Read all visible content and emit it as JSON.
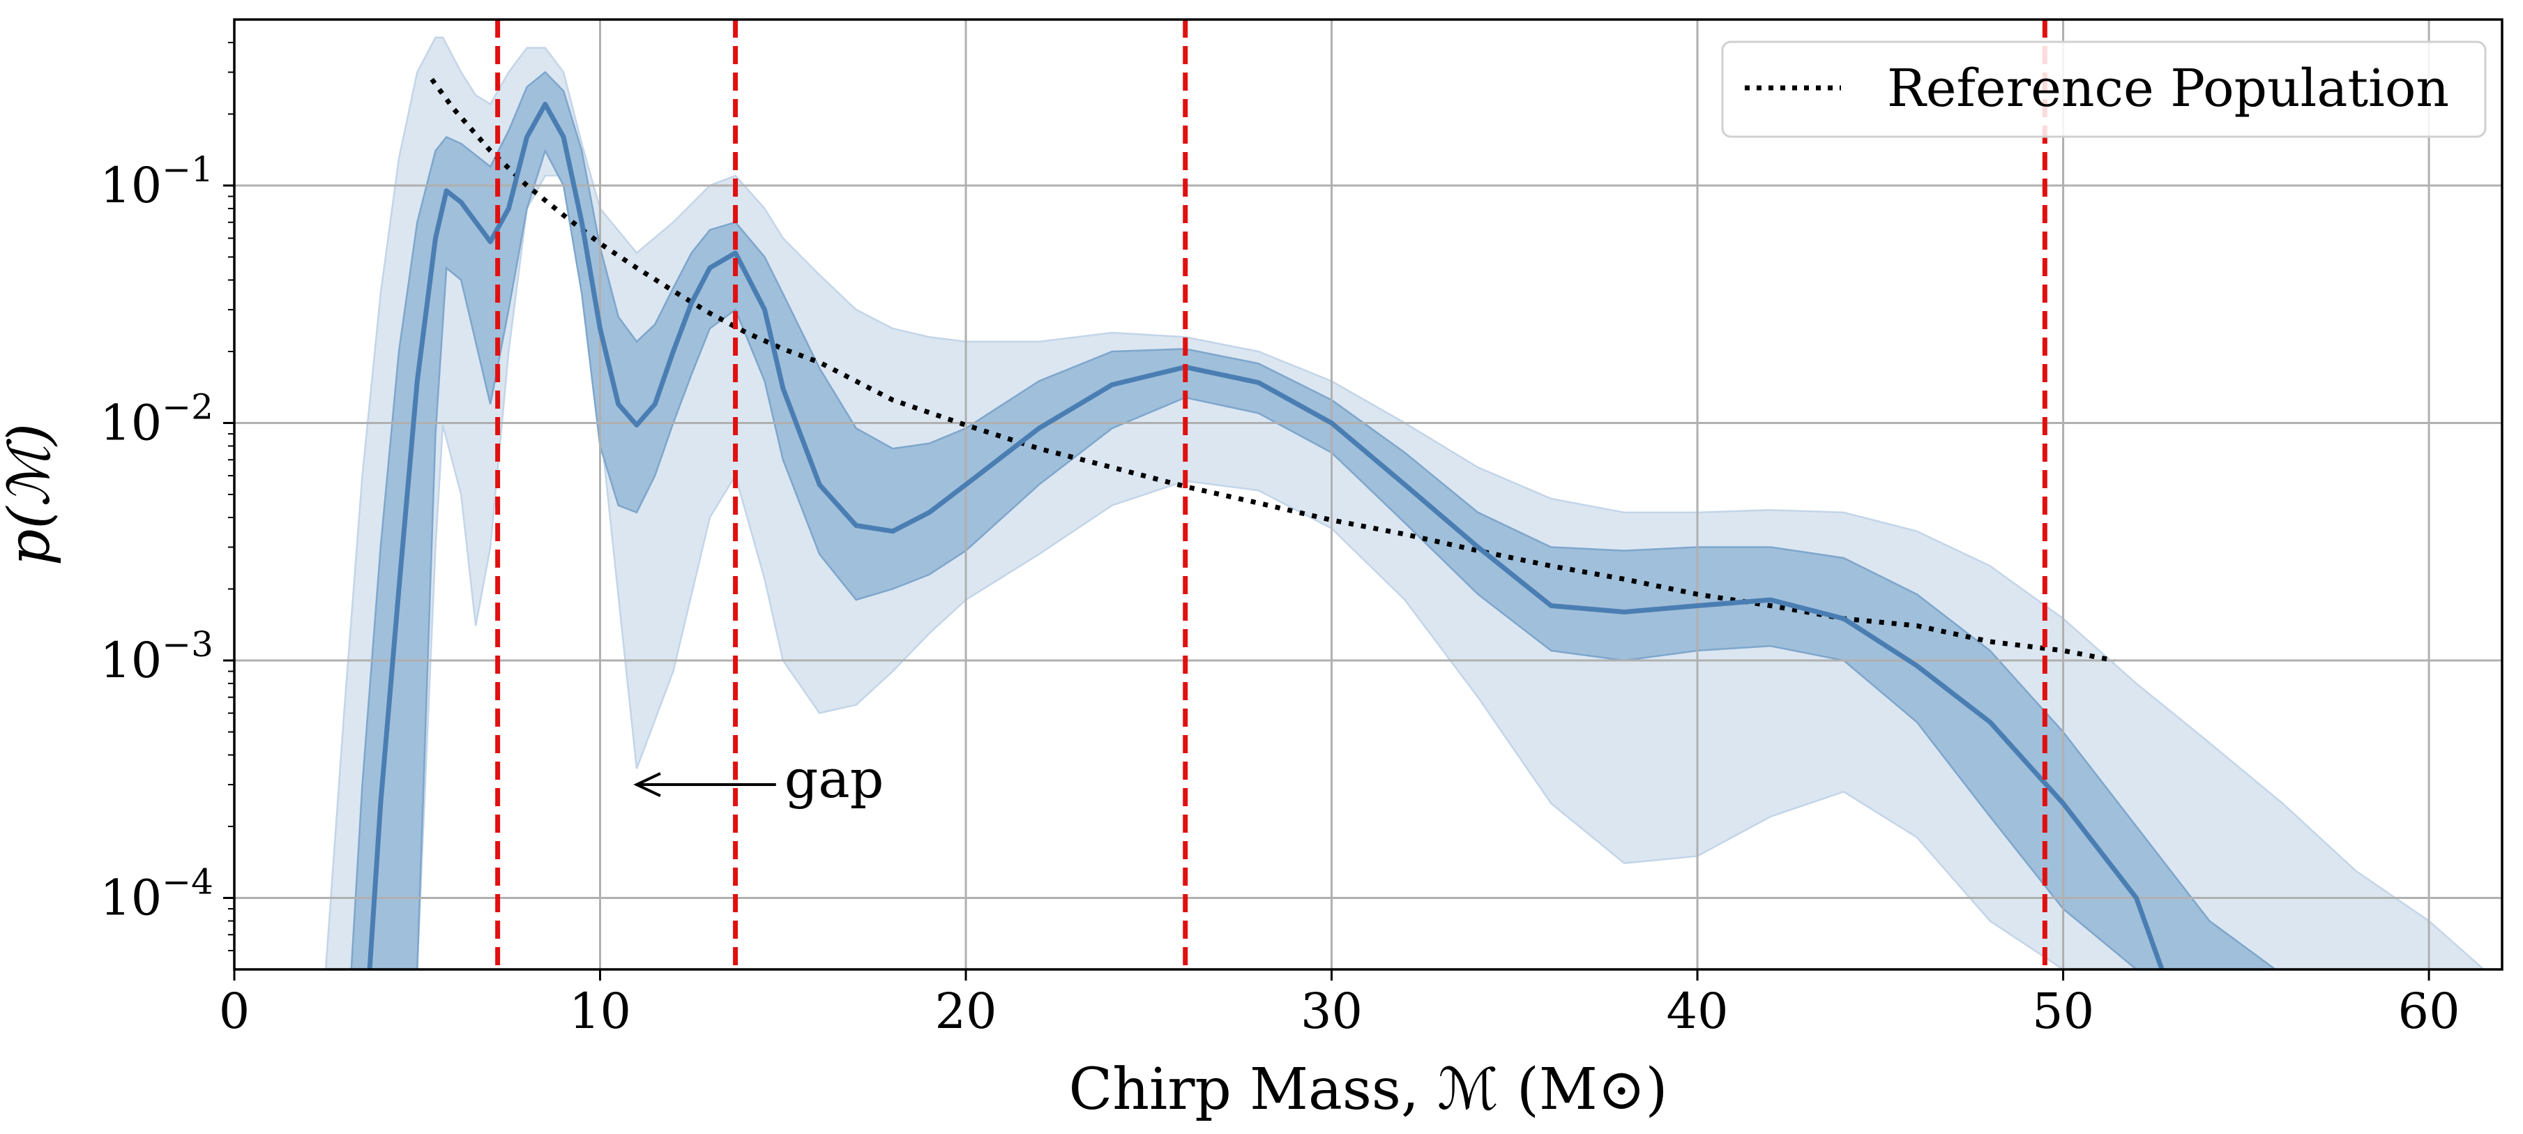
{
  "chart_data": {
    "type": "line",
    "title": "",
    "xlabel": "Chirp Mass, ℳ (M⊙)",
    "ylabel": "p(ℳ)",
    "xlim": [
      0,
      62
    ],
    "ylim": [
      5e-05,
      0.5
    ],
    "yscale": "log",
    "grid": true,
    "legend_position": "top-right",
    "x_ticks": [
      {
        "value": 0,
        "label": "0"
      },
      {
        "value": 10,
        "label": "10"
      },
      {
        "value": 20,
        "label": "20"
      },
      {
        "value": 30,
        "label": "30"
      },
      {
        "value": 40,
        "label": "40"
      },
      {
        "value": 50,
        "label": "50"
      },
      {
        "value": 60,
        "label": "60"
      }
    ],
    "y_ticks": [
      {
        "value": 0.1,
        "base": "10",
        "exp": "−1"
      },
      {
        "value": 0.01,
        "base": "10",
        "exp": "−2"
      },
      {
        "value": 0.001,
        "base": "10",
        "exp": "−3"
      },
      {
        "value": 0.0001,
        "base": "10",
        "exp": "−4"
      }
    ],
    "colors": {
      "median": "#4a7eb3",
      "band_inner": "#a0bfda",
      "band_outer": "#dbe6f1",
      "vlines": "#e01010",
      "reference": "#000000"
    },
    "series": [
      {
        "name": "Reference Population",
        "style": "dotted",
        "x": [
          5.4,
          6,
          7,
          8,
          9,
          10,
          11,
          12,
          13,
          14,
          15,
          16,
          18,
          20,
          22,
          24,
          26,
          28,
          30,
          32,
          34,
          36,
          38,
          40,
          42,
          44,
          46,
          48,
          50,
          51.4
        ],
        "values": [
          0.28,
          0.21,
          0.14,
          0.1,
          0.075,
          0.057,
          0.045,
          0.036,
          0.029,
          0.024,
          0.0205,
          0.018,
          0.0125,
          0.0098,
          0.0078,
          0.0065,
          0.0054,
          0.0046,
          0.0039,
          0.0034,
          0.0029,
          0.0025,
          0.0022,
          0.0019,
          0.0017,
          0.0015,
          0.0014,
          0.0012,
          0.0011,
          0.001
        ]
      },
      {
        "style": "solid",
        "x": [
          3.7,
          4,
          4.5,
          5,
          5.5,
          5.8,
          6.2,
          7,
          7.5,
          8,
          8.5,
          9,
          9.5,
          10,
          10.5,
          11,
          11.5,
          12,
          12.5,
          13,
          13.7,
          14.5,
          15,
          16,
          17,
          18,
          19,
          20,
          22,
          24,
          26,
          28,
          30,
          32,
          34,
          36,
          38,
          40,
          42,
          44,
          46,
          48,
          50,
          52,
          52.7
        ],
        "values": [
          5e-05,
          0.00025,
          0.002,
          0.015,
          0.06,
          0.095,
          0.085,
          0.058,
          0.08,
          0.16,
          0.22,
          0.16,
          0.07,
          0.025,
          0.012,
          0.0098,
          0.012,
          0.02,
          0.032,
          0.045,
          0.052,
          0.03,
          0.014,
          0.0055,
          0.0037,
          0.0035,
          0.0042,
          0.0055,
          0.0095,
          0.0145,
          0.0172,
          0.0148,
          0.01,
          0.0055,
          0.003,
          0.0017,
          0.0016,
          0.0017,
          0.0018,
          0.0015,
          0.00095,
          0.00055,
          0.00025,
          0.0001,
          5e-05
        ]
      }
    ],
    "bands": [
      {
        "x": [
          2.5,
          3,
          3.5,
          4,
          4.5,
          5,
          5.5,
          5.7,
          6.2,
          6.6,
          7,
          7.5,
          8,
          8.5,
          9,
          9.5,
          10,
          11,
          12,
          13,
          13.7,
          14.5,
          15,
          16,
          17,
          18,
          19,
          20,
          22,
          24,
          26,
          28,
          30,
          32,
          34,
          36,
          38,
          40,
          42,
          44,
          46,
          48,
          50,
          52,
          54,
          56,
          58,
          60,
          61.5
        ],
        "upper": [
          5e-05,
          0.0006,
          0.006,
          0.035,
          0.13,
          0.3,
          0.42,
          0.42,
          0.3,
          0.24,
          0.22,
          0.3,
          0.38,
          0.38,
          0.3,
          0.15,
          0.08,
          0.052,
          0.07,
          0.1,
          0.11,
          0.08,
          0.06,
          0.042,
          0.03,
          0.025,
          0.023,
          0.022,
          0.022,
          0.024,
          0.023,
          0.02,
          0.015,
          0.01,
          0.0065,
          0.0048,
          0.0042,
          0.0042,
          0.0043,
          0.0042,
          0.0035,
          0.0025,
          0.0015,
          0.0008,
          0.00045,
          0.00025,
          0.00013,
          8e-05,
          5e-05
        ],
        "lower": [
          5e-05,
          5e-05,
          5e-05,
          5e-05,
          5e-05,
          5e-05,
          0.003,
          0.0098,
          0.005,
          0.0014,
          0.003,
          0.02,
          0.08,
          0.11,
          0.11,
          0.06,
          0.01,
          0.00035,
          0.0009,
          0.004,
          0.006,
          0.0022,
          0.001,
          0.0006,
          0.00065,
          0.0009,
          0.0013,
          0.0018,
          0.0028,
          0.0045,
          0.0057,
          0.0052,
          0.0036,
          0.0018,
          0.0007,
          0.00025,
          0.00014,
          0.00015,
          0.00022,
          0.00028,
          0.00018,
          8e-05,
          5e-05,
          5e-05,
          5e-05,
          5e-05,
          5e-05,
          5e-05,
          5e-05
        ]
      },
      {
        "x": [
          3.2,
          3.5,
          4,
          4.5,
          5,
          5.5,
          5.8,
          6.2,
          7,
          7.5,
          8,
          8.5,
          9,
          9.5,
          10,
          10.5,
          11,
          11.5,
          12,
          12.5,
          13,
          13.7,
          14.5,
          15,
          16,
          17,
          18,
          19,
          20,
          22,
          24,
          26,
          28,
          30,
          32,
          34,
          36,
          38,
          40,
          42,
          44,
          46,
          48,
          50,
          52,
          54,
          55.8
        ],
        "upper": [
          5e-05,
          0.0003,
          0.003,
          0.02,
          0.07,
          0.14,
          0.16,
          0.15,
          0.12,
          0.17,
          0.26,
          0.3,
          0.25,
          0.14,
          0.055,
          0.028,
          0.022,
          0.026,
          0.037,
          0.052,
          0.065,
          0.07,
          0.05,
          0.035,
          0.017,
          0.0095,
          0.0078,
          0.0082,
          0.0095,
          0.015,
          0.02,
          0.0205,
          0.0178,
          0.0125,
          0.0075,
          0.0042,
          0.003,
          0.0029,
          0.003,
          0.003,
          0.0027,
          0.0019,
          0.0011,
          0.0005,
          0.0002,
          8e-05,
          5e-05
        ],
        "lower": [
          5e-05,
          5e-05,
          5e-05,
          5e-05,
          5e-05,
          0.009,
          0.045,
          0.04,
          0.012,
          0.03,
          0.08,
          0.14,
          0.1,
          0.035,
          0.008,
          0.0045,
          0.0042,
          0.006,
          0.01,
          0.016,
          0.025,
          0.03,
          0.015,
          0.007,
          0.0028,
          0.0018,
          0.002,
          0.0023,
          0.0029,
          0.0055,
          0.0095,
          0.0128,
          0.011,
          0.0075,
          0.0038,
          0.0019,
          0.0011,
          0.001,
          0.0011,
          0.00115,
          0.001,
          0.00055,
          0.00022,
          9e-05,
          5e-05,
          5e-05,
          5e-05
        ]
      }
    ],
    "vlines": [
      7.2,
      13.7,
      26,
      49.5
    ],
    "annotation": {
      "text": "gap",
      "x_text": 15,
      "x_arrow_tip": 11,
      "y": 0.0003
    }
  }
}
